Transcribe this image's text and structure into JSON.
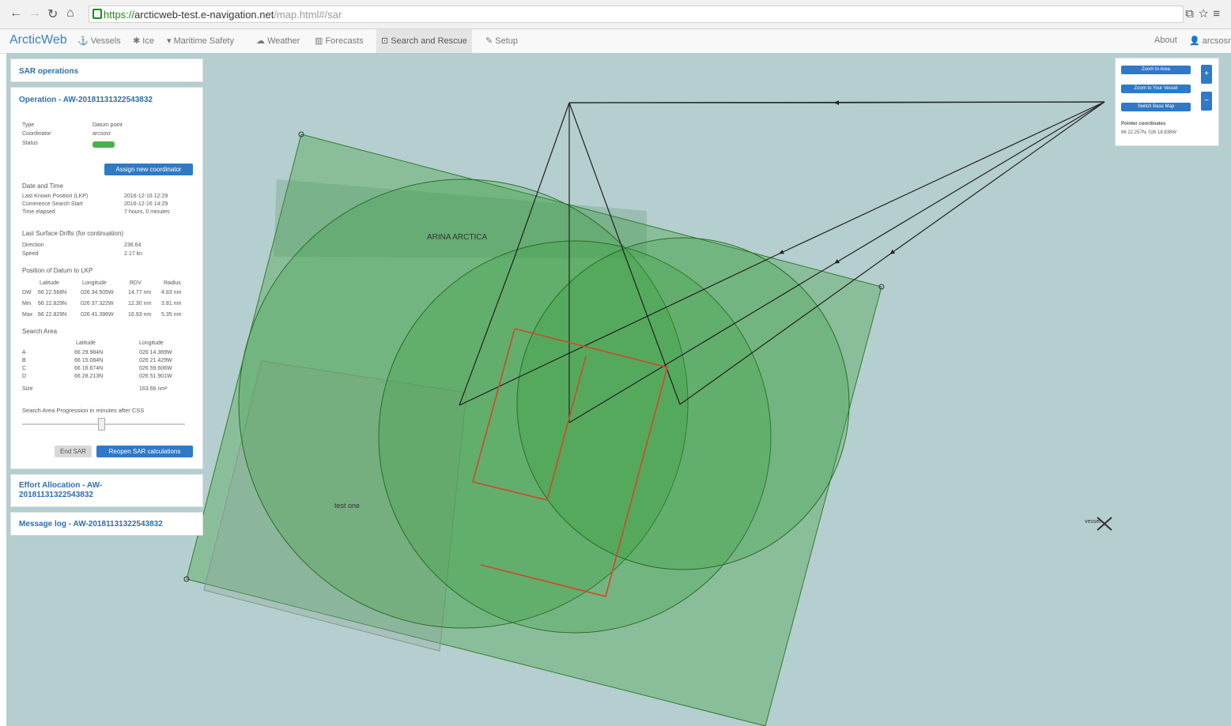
{
  "browser": {
    "url_scheme": "https://",
    "url_host": "arcticweb-test.e-navigation.net",
    "url_path": "/map.html#/sar",
    "icons": [
      "back-icon",
      "forward-icon",
      "reload-icon",
      "home-icon",
      "lock-icon",
      "extension-icon",
      "star-icon",
      "menu-icon"
    ]
  },
  "navbar": {
    "brand": "ArcticWeb",
    "items": [
      {
        "label": "Vessels",
        "icon": "anchor-icon"
      },
      {
        "label": "Ice",
        "icon": "snowflake-icon"
      },
      {
        "label": "Maritime Safety",
        "icon": "signal-icon"
      },
      {
        "label": "Weather",
        "icon": "cloud-icon"
      },
      {
        "label": "Forecasts",
        "icon": "chart-icon"
      },
      {
        "label": "Search and Rescue",
        "icon": "sar-icon"
      },
      {
        "label": "Setup",
        "icon": "wrench-icon"
      }
    ],
    "about": "About",
    "user": "arcsosr"
  },
  "sar": {
    "operations_title": "SAR operations",
    "operation_title": "Operation - AW-20181131322543832",
    "type_label": "Type",
    "type_value": "Datum point",
    "coordinator_label": "Coordinator",
    "coordinator_value": "arcsosr",
    "status_label": "Status",
    "assign_button": "Assign new coordinator",
    "date_time_title": "Date and Time",
    "lkp_label": "Last Known Position (LKP)",
    "lkp_value": "2016-12-16 12:29",
    "css_label": "Commence Search Start",
    "css_value": "2016-12-16 14:29",
    "elapsed_label": "Time elapsed",
    "elapsed_value": "7 hours, 0 minutes",
    "drift_title": "Last Surface Drifts (for continuation)",
    "direction_label": "Direction",
    "direction_value": "236.64",
    "speed_label": "Speed",
    "speed_value": "2.17 kn",
    "datum_title": "Position of Datum to LKP",
    "datum_headers": [
      "Latitude",
      "Longitude",
      "RDV",
      "Radius"
    ],
    "datum_rows": [
      {
        "label": "DW",
        "lat": "66 22.568N",
        "lon": "026 34.505W",
        "rdv": "14.77 nm",
        "radius": "4.83 nm"
      },
      {
        "label": "Min",
        "lat": "66 22.829N",
        "lon": "026 37.322W",
        "rdv": "12.30 nm",
        "radius": "3.81 nm"
      },
      {
        "label": "Max",
        "lat": "66 22.829N",
        "lon": "026 41.396W",
        "rdv": "16.93 nm",
        "radius": "5.35 nm"
      }
    ],
    "search_area_title": "Search Area",
    "area_headers": [
      "Latitude",
      "Longitude"
    ],
    "area_rows": [
      {
        "label": "A",
        "lat": "66 29.984N",
        "lon": "026 14.369W"
      },
      {
        "label": "B",
        "lat": "66 15.084N",
        "lon": "026 21.429W"
      },
      {
        "label": "C",
        "lat": "66 16.674N",
        "lon": "026 59.606W"
      },
      {
        "label": "D",
        "lat": "66 28.213N",
        "lon": "026 51.901W"
      }
    ],
    "size_label": "Size",
    "size_value": "163.66 nm²",
    "progression_label": "Search Area Progression in minutes after CSS",
    "progression_fraction": 0.48,
    "end_button": "End SAR",
    "reopen_button": "Reopen SAR calculations",
    "effort_title": "Effort Allocation - AW-20181131322543832",
    "message_title": "Message log - AW-20181131322543832"
  },
  "map": {
    "label_arina": "ARINA ARCTICA",
    "label_test": "test one",
    "vessel_label": "vessel",
    "zoom_all": "Zoom to Area",
    "zoom_vessel": "Zoom to Your Vessel",
    "switch_map": "Switch Base Map",
    "pointer_label": "Pointer coordinates",
    "pointer_value": "66 22.257N, 026 18.838W",
    "colors": {
      "sea": "#b5cecf",
      "area_fill": "#3aa13a",
      "drift": "#222222",
      "effort": "#d04a2a"
    }
  }
}
